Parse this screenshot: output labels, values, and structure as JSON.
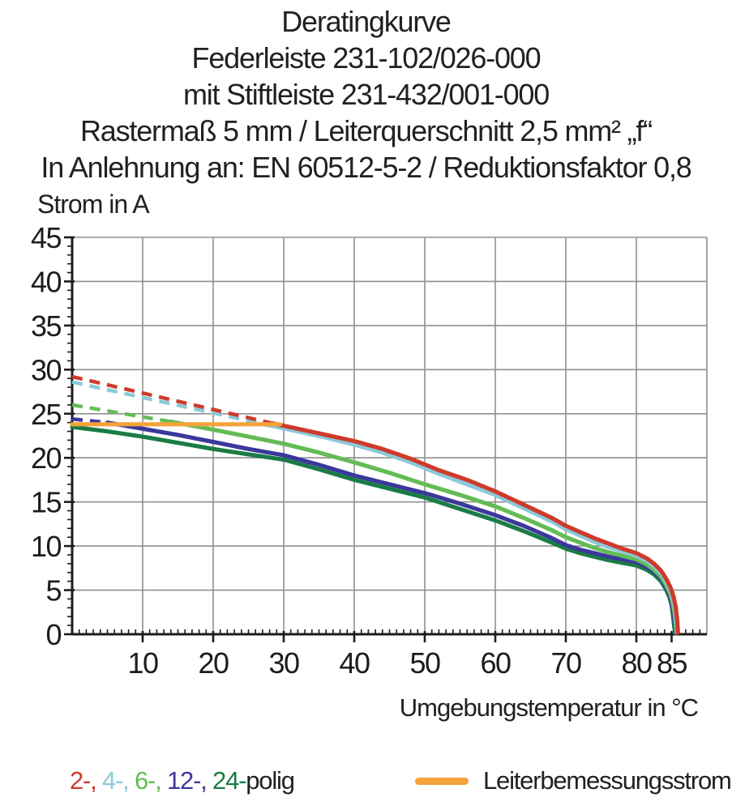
{
  "title_lines": [
    "Deratingkurve",
    "Federleiste 231-102/026-000",
    "mit Stiftleiste 231-432/001-000",
    "Rastermaß 5 mm / Leiterquerschnitt 2,5 mm² „f“",
    "In Anlehnung an: EN 60512-5-2 / Reduktionsfaktor 0,8"
  ],
  "chart_data": {
    "type": "line",
    "title": "Deratingkurve",
    "xlabel": "Umgebungstemperatur in °C",
    "ylabel": "Strom in A",
    "xlim": [
      0,
      90
    ],
    "ylim": [
      0,
      45
    ],
    "x_major_ticks": [
      10,
      20,
      30,
      40,
      50,
      60,
      70,
      80,
      85
    ],
    "x_grid_step": 10,
    "x_minor_step": 1,
    "y_major_step": 5,
    "y_minor_step": 1,
    "grid": true,
    "grid_color": "#909090",
    "axis_color": "#1c1c1c",
    "legend_position": "bottom",
    "series": [
      {
        "name": "24-polig",
        "color": "#1a7c45",
        "solid": [
          [
            0,
            23.5
          ],
          [
            5,
            23.0
          ],
          [
            10,
            22.4
          ],
          [
            15,
            21.7
          ],
          [
            20,
            21.0
          ],
          [
            25,
            20.4
          ],
          [
            30,
            19.8
          ],
          [
            35,
            18.7
          ],
          [
            40,
            17.5
          ],
          [
            45,
            16.5
          ],
          [
            50,
            15.5
          ],
          [
            55,
            14.2
          ],
          [
            60,
            12.9
          ],
          [
            64,
            11.7
          ],
          [
            68,
            10.4
          ],
          [
            70,
            9.7
          ],
          [
            72,
            9.2
          ],
          [
            74,
            8.8
          ],
          [
            76,
            8.4
          ],
          [
            78,
            8.1
          ],
          [
            80,
            7.8
          ],
          [
            81.5,
            7.3
          ],
          [
            82.5,
            6.8
          ],
          [
            83.5,
            6.0
          ],
          [
            84.2,
            5.1
          ],
          [
            84.7,
            4.2
          ],
          [
            85.0,
            3.3
          ],
          [
            85.2,
            2.1
          ],
          [
            85.4,
            0.7
          ],
          [
            85.5,
            0.2
          ]
        ]
      },
      {
        "name": "12-polig",
        "color": "#3b389d",
        "dash": [
          [
            0,
            24.4
          ],
          [
            5,
            24.0
          ]
        ],
        "solid": [
          [
            5,
            24.0
          ],
          [
            10,
            23.3
          ],
          [
            15,
            22.6
          ],
          [
            20,
            21.8
          ],
          [
            25,
            21.0
          ],
          [
            30,
            20.3
          ],
          [
            35,
            19.2
          ],
          [
            40,
            18.0
          ],
          [
            45,
            17.0
          ],
          [
            50,
            16.0
          ],
          [
            55,
            14.8
          ],
          [
            60,
            13.5
          ],
          [
            64,
            12.3
          ],
          [
            68,
            10.9
          ],
          [
            70,
            10.1
          ],
          [
            72,
            9.6
          ],
          [
            74,
            9.2
          ],
          [
            76,
            8.8
          ],
          [
            78,
            8.5
          ],
          [
            80,
            8.2
          ],
          [
            81.5,
            7.6
          ],
          [
            82.5,
            7.1
          ],
          [
            83.5,
            6.3
          ],
          [
            84.2,
            5.4
          ],
          [
            84.7,
            4.4
          ],
          [
            85.0,
            3.5
          ],
          [
            85.3,
            2.3
          ],
          [
            85.5,
            0.8
          ],
          [
            85.6,
            0.2
          ]
        ]
      },
      {
        "name": "6-polig",
        "color": "#63bc55",
        "dash": [
          [
            0,
            26.0
          ],
          [
            14,
            24.1
          ]
        ],
        "solid": [
          [
            14,
            24.1
          ],
          [
            20,
            23.2
          ],
          [
            25,
            22.4
          ],
          [
            30,
            21.6
          ],
          [
            35,
            20.6
          ],
          [
            40,
            19.5
          ],
          [
            45,
            18.3
          ],
          [
            50,
            17.0
          ],
          [
            55,
            15.8
          ],
          [
            60,
            14.5
          ],
          [
            64,
            13.2
          ],
          [
            68,
            11.8
          ],
          [
            70,
            11.0
          ],
          [
            72,
            10.4
          ],
          [
            74,
            9.8
          ],
          [
            76,
            9.3
          ],
          [
            78,
            8.9
          ],
          [
            80,
            8.5
          ],
          [
            81.5,
            7.9
          ],
          [
            82.5,
            7.3
          ],
          [
            83.5,
            6.5
          ],
          [
            84.2,
            5.6
          ],
          [
            84.8,
            4.6
          ],
          [
            85.1,
            3.7
          ],
          [
            85.4,
            2.5
          ],
          [
            85.6,
            1.0
          ],
          [
            85.7,
            0.2
          ]
        ]
      },
      {
        "name": "4-polig",
        "color": "#8ac9d9",
        "dash": [
          [
            0,
            28.6
          ],
          [
            27,
            23.85
          ]
        ],
        "solid": [
          [
            27,
            23.85
          ],
          [
            32,
            23.0
          ],
          [
            36,
            22.3
          ],
          [
            40,
            21.5
          ],
          [
            44,
            20.6
          ],
          [
            48,
            19.5
          ],
          [
            52,
            18.2
          ],
          [
            56,
            17.0
          ],
          [
            60,
            15.8
          ],
          [
            64,
            14.3
          ],
          [
            68,
            12.8
          ],
          [
            70,
            11.9
          ],
          [
            72,
            11.2
          ],
          [
            74,
            10.5
          ],
          [
            76,
            9.9
          ],
          [
            78,
            9.4
          ],
          [
            80,
            8.9
          ],
          [
            81.5,
            8.3
          ],
          [
            82.5,
            7.7
          ],
          [
            83.5,
            6.9
          ],
          [
            84.2,
            6.0
          ],
          [
            84.8,
            5.0
          ],
          [
            85.2,
            4.0
          ],
          [
            85.5,
            2.8
          ],
          [
            85.7,
            1.3
          ],
          [
            85.8,
            0.2
          ]
        ]
      },
      {
        "name": "2-polig",
        "color": "#cf3a2a",
        "dash": [
          [
            0,
            29.2
          ],
          [
            28.5,
            23.9
          ]
        ],
        "solid": [
          [
            28.5,
            23.9
          ],
          [
            32,
            23.3
          ],
          [
            36,
            22.6
          ],
          [
            40,
            21.9
          ],
          [
            44,
            21.0
          ],
          [
            48,
            19.9
          ],
          [
            52,
            18.6
          ],
          [
            56,
            17.5
          ],
          [
            60,
            16.2
          ],
          [
            64,
            14.7
          ],
          [
            68,
            13.2
          ],
          [
            70,
            12.3
          ],
          [
            72,
            11.6
          ],
          [
            74,
            10.9
          ],
          [
            76,
            10.3
          ],
          [
            78,
            9.7
          ],
          [
            80,
            9.2
          ],
          [
            81.5,
            8.6
          ],
          [
            82.5,
            8.0
          ],
          [
            83.5,
            7.2
          ],
          [
            84.3,
            6.2
          ],
          [
            84.9,
            5.2
          ],
          [
            85.3,
            4.2
          ],
          [
            85.6,
            3.0
          ],
          [
            85.8,
            1.5
          ],
          [
            85.9,
            0.2
          ]
        ]
      },
      {
        "name": "Leiterbemessungsstrom",
        "color": "#f4a33a",
        "solid": [
          [
            0,
            23.8
          ],
          [
            29.5,
            23.8
          ]
        ]
      }
    ]
  },
  "legend": {
    "poles": [
      {
        "label": "2-",
        "color": "#cf3a2a"
      },
      {
        "label": "4-",
        "color": "#8ac9d9"
      },
      {
        "label": "6-",
        "color": "#63bc55"
      },
      {
        "label": "12-",
        "color": "#3b389d"
      },
      {
        "label": "24-",
        "color": "#1a7c45"
      }
    ],
    "separator": ", ",
    "poles_suffix": "polig",
    "poles_suffix_color": "#212121",
    "rated_current_label": "Leiterbemessungsstrom",
    "rated_current_color": "#f4a33a"
  }
}
